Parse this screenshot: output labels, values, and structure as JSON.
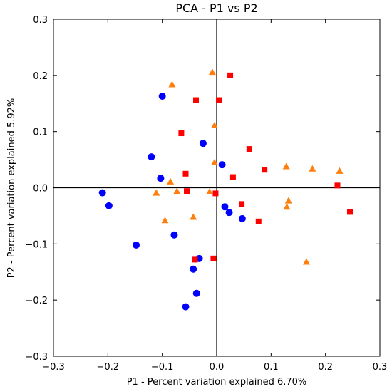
{
  "chart_data": {
    "type": "scatter",
    "title": "PCA - P1 vs P2",
    "xlabel": "P1 - Percent variation explained 6.70%",
    "ylabel": "P2 - Percent variation explained 5.92%",
    "xlim": [
      -0.3,
      0.3
    ],
    "ylim": [
      -0.3,
      0.3
    ],
    "xticks": [
      "−0.3",
      "−0.2",
      "−0.1",
      "0.0",
      "0.1",
      "0.2",
      "0.3"
    ],
    "yticks": [
      "−0.3",
      "−0.2",
      "−0.1",
      "0.0",
      "0.1",
      "0.2",
      "0.3"
    ],
    "xtick_values": [
      -0.3,
      -0.2,
      -0.1,
      0.0,
      0.1,
      0.2,
      0.3
    ],
    "ytick_values": [
      -0.3,
      -0.2,
      -0.1,
      0.0,
      0.1,
      0.2,
      0.3
    ],
    "grid": false,
    "zero_lines": true,
    "series": [
      {
        "marker": "circle",
        "color": "#0000ff",
        "x": [
          -0.1,
          -0.025,
          -0.12,
          0.01,
          -0.103,
          -0.21,
          -0.198,
          0.015,
          0.023,
          0.047,
          -0.078,
          -0.148,
          -0.032,
          -0.043,
          -0.037,
          -0.057
        ],
        "y": [
          0.163,
          0.079,
          0.055,
          0.041,
          0.017,
          -0.009,
          -0.032,
          -0.034,
          -0.044,
          -0.055,
          -0.084,
          -0.102,
          -0.126,
          -0.145,
          -0.188,
          -0.212
        ]
      },
      {
        "marker": "square",
        "color": "#ff0000",
        "x": [
          0.025,
          -0.038,
          0.004,
          -0.065,
          0.06,
          -0.057,
          0.03,
          0.088,
          0.222,
          -0.055,
          -0.002,
          0.046,
          0.245,
          0.077,
          -0.04,
          -0.006
        ],
        "y": [
          0.2,
          0.156,
          0.156,
          0.097,
          0.069,
          0.025,
          0.019,
          0.032,
          0.004,
          -0.006,
          -0.01,
          -0.029,
          -0.043,
          -0.06,
          -0.128,
          -0.126
        ]
      },
      {
        "marker": "triangle",
        "color": "#ff7f0e",
        "x": [
          -0.008,
          -0.082,
          -0.004,
          -0.004,
          0.128,
          0.176,
          0.226,
          -0.085,
          -0.111,
          -0.073,
          -0.013,
          0.132,
          0.129,
          -0.043,
          -0.095,
          0.165
        ],
        "y": [
          0.206,
          0.184,
          0.111,
          0.045,
          0.038,
          0.034,
          0.03,
          0.011,
          -0.009,
          -0.006,
          -0.007,
          -0.023,
          -0.034,
          -0.052,
          -0.058,
          -0.132
        ]
      }
    ]
  }
}
